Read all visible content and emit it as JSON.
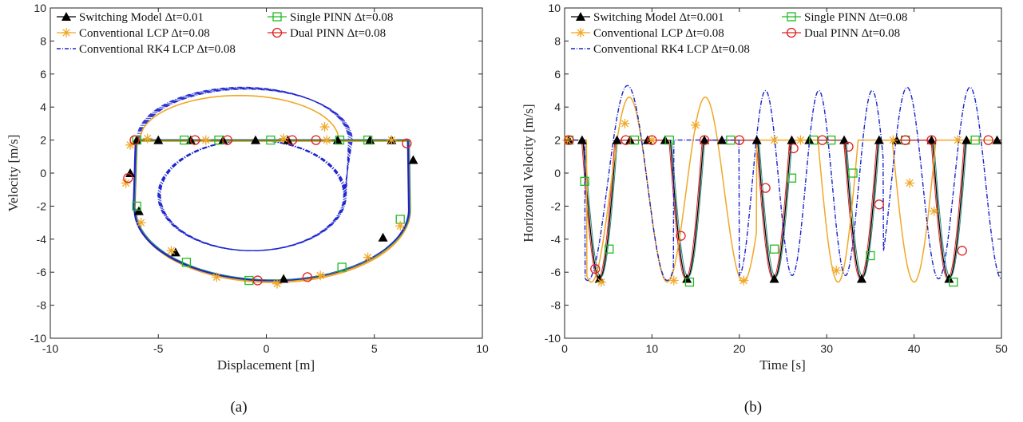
{
  "colors": {
    "switching": "#000000",
    "single": "#22bb22",
    "lcp": "#f0a826",
    "dual": "#e02020",
    "rk4": "#1a22cc",
    "teal": "#2a8a7a"
  },
  "chart_data": [
    {
      "id": "a",
      "type": "line",
      "caption": "(a)",
      "xlabel": "Displacement [m]",
      "ylabel": "Velocity [m/s]",
      "xlim": [
        -10,
        10
      ],
      "ylim": [
        -10,
        10
      ],
      "xticks": [
        "-10",
        "-5",
        "0",
        "5",
        "10"
      ],
      "yticks": [
        "-10",
        "-8",
        "-6",
        "-4",
        "-2",
        "0",
        "2",
        "4",
        "6",
        "8",
        "10"
      ],
      "grid": false,
      "legend": [
        {
          "key": "switching",
          "label": "Switching Model Δt=0.01"
        },
        {
          "key": "single",
          "label": "Single PINN Δt=0.08"
        },
        {
          "key": "lcp",
          "label": "Conventional LCP Δt=0.08"
        },
        {
          "key": "dual",
          "label": "Dual PINN Δt=0.08"
        },
        {
          "key": "rk4",
          "label": "Conventional RK4 LCP Δt=0.08"
        }
      ],
      "legend_position": "top-left",
      "series": [
        {
          "name": "Switching Model Δt=0.01",
          "key": "switching",
          "markers": [
            [
              -6.0,
              2.0
            ],
            [
              -5.0,
              2.0
            ],
            [
              -3.5,
              2.0
            ],
            [
              -2.0,
              2.0
            ],
            [
              -0.5,
              2.0
            ],
            [
              1.0,
              2.0
            ],
            [
              3.3,
              2.0
            ],
            [
              4.8,
              2.0
            ],
            [
              5.8,
              2.0
            ],
            [
              6.8,
              0.8
            ],
            [
              5.4,
              -3.9
            ],
            [
              0.8,
              -6.4
            ],
            [
              -4.2,
              -4.8
            ],
            [
              -5.9,
              -2.3
            ],
            [
              -6.3,
              0.0
            ]
          ]
        },
        {
          "name": "Single PINN Δt=0.08",
          "key": "single",
          "markers": [
            [
              -6.0,
              2.0
            ],
            [
              -3.8,
              2.0
            ],
            [
              -2.2,
              2.0
            ],
            [
              0.2,
              2.0
            ],
            [
              3.4,
              2.0
            ],
            [
              4.7,
              2.0
            ],
            [
              6.2,
              -2.8
            ],
            [
              3.5,
              -5.7
            ],
            [
              -0.8,
              -6.5
            ],
            [
              -3.7,
              -5.4
            ],
            [
              -6.0,
              -2.0
            ]
          ]
        },
        {
          "name": "Conventional LCP Δt=0.08",
          "key": "lcp",
          "markers": [
            [
              -6.3,
              1.7
            ],
            [
              -5.5,
              2.1
            ],
            [
              -2.8,
              2.0
            ],
            [
              0.8,
              2.1
            ],
            [
              2.8,
              2.0
            ],
            [
              5.8,
              2.0
            ],
            [
              6.2,
              -3.2
            ],
            [
              4.7,
              -5.1
            ],
            [
              2.5,
              -6.2
            ],
            [
              0.5,
              -6.7
            ],
            [
              -2.3,
              -6.3
            ],
            [
              -4.4,
              -4.7
            ],
            [
              -5.8,
              -3.0
            ],
            [
              -6.5,
              -0.6
            ],
            [
              2.7,
              2.8
            ]
          ]
        },
        {
          "name": "Dual PINN Δt=0.08",
          "key": "dual",
          "markers": [
            [
              -6.1,
              2.0
            ],
            [
              -3.3,
              2.0
            ],
            [
              -1.8,
              2.0
            ],
            [
              1.2,
              2.0
            ],
            [
              2.3,
              2.0
            ],
            [
              6.5,
              1.8
            ],
            [
              1.9,
              -6.3
            ],
            [
              -0.4,
              -6.5
            ],
            [
              -6.4,
              -0.3
            ]
          ]
        },
        {
          "name": "Conventional RK4 LCP Δt=0.08",
          "key": "rk4",
          "markers": []
        }
      ]
    },
    {
      "id": "b",
      "type": "line",
      "caption": "(b)",
      "xlabel": "Time [s]",
      "ylabel": "Horizontal Velocity [m/s]",
      "xlim": [
        0,
        50
      ],
      "ylim": [
        -10,
        10
      ],
      "xticks": [
        "0",
        "10",
        "20",
        "30",
        "40",
        "50"
      ],
      "yticks": [
        "-10",
        "-8",
        "-6",
        "-4",
        "-2",
        "0",
        "2",
        "4",
        "6",
        "8",
        "10"
      ],
      "grid": false,
      "legend": [
        {
          "key": "switching",
          "label": "Switching Model Δt=0.001"
        },
        {
          "key": "single",
          "label": "Single PINN Δt=0.08"
        },
        {
          "key": "lcp",
          "label": "Conventional LCP Δt=0.08"
        },
        {
          "key": "dual",
          "label": "Dual PINN Δt=0.08"
        },
        {
          "key": "rk4",
          "label": "Conventional RK4 LCP Δt=0.08"
        }
      ],
      "legend_position": "top-left",
      "series": [
        {
          "name": "Switching Model Δt=0.001",
          "key": "switching",
          "markers": [
            [
              0.5,
              2.0
            ],
            [
              2.0,
              2.0
            ],
            [
              4.0,
              -6.4
            ],
            [
              6.0,
              2.0
            ],
            [
              7.5,
              2.0
            ],
            [
              9.5,
              2.0
            ],
            [
              11.5,
              2.0
            ],
            [
              14.0,
              -6.4
            ],
            [
              16.0,
              2.0
            ],
            [
              18.0,
              2.0
            ],
            [
              22.0,
              2.0
            ],
            [
              24.0,
              -6.4
            ],
            [
              26.0,
              2.0
            ],
            [
              28.0,
              2.0
            ],
            [
              32.0,
              2.0
            ],
            [
              34.0,
              -6.4
            ],
            [
              36.0,
              2.0
            ],
            [
              38.0,
              2.0
            ],
            [
              42.0,
              2.0
            ],
            [
              44.0,
              -6.4
            ],
            [
              46.0,
              2.0
            ],
            [
              49.5,
              2.0
            ]
          ]
        },
        {
          "name": "Single PINN Δt=0.08",
          "key": "single",
          "markers": [
            [
              0.5,
              2.0
            ],
            [
              2.3,
              -0.5
            ],
            [
              5.1,
              -4.6
            ],
            [
              8.0,
              2.0
            ],
            [
              12.0,
              2.0
            ],
            [
              14.3,
              -6.6
            ],
            [
              19.0,
              2.0
            ],
            [
              24.0,
              -4.6
            ],
            [
              26.0,
              -0.3
            ],
            [
              28.5,
              2.0
            ],
            [
              30.5,
              2.0
            ],
            [
              33.0,
              0.0
            ],
            [
              35.0,
              -5.0
            ],
            [
              39.0,
              2.0
            ],
            [
              44.5,
              -6.6
            ],
            [
              47.0,
              2.0
            ]
          ]
        },
        {
          "name": "Conventional LCP Δt=0.08",
          "key": "lcp",
          "markers": [
            [
              0.3,
              2.0
            ],
            [
              4.2,
              -6.6
            ],
            [
              6.9,
              3.0
            ],
            [
              10.0,
              2.0
            ],
            [
              12.5,
              -6.5
            ],
            [
              15.0,
              2.9
            ],
            [
              20.5,
              -6.5
            ],
            [
              24.0,
              2.0
            ],
            [
              27.0,
              2.0
            ],
            [
              31.1,
              -5.9
            ],
            [
              37.6,
              2.0
            ],
            [
              39.5,
              -0.6
            ],
            [
              42.3,
              -2.3
            ],
            [
              45.0,
              2.0
            ]
          ]
        },
        {
          "name": "Dual PINN Δt=0.08",
          "key": "dual",
          "markers": [
            [
              0.5,
              2.0
            ],
            [
              3.5,
              -5.8
            ],
            [
              7.0,
              2.0
            ],
            [
              10.0,
              2.0
            ],
            [
              13.3,
              -3.8
            ],
            [
              16.0,
              2.0
            ],
            [
              20.0,
              2.0
            ],
            [
              23.0,
              -0.9
            ],
            [
              26.2,
              1.5
            ],
            [
              29.5,
              2.0
            ],
            [
              32.5,
              1.6
            ],
            [
              36.0,
              -1.9
            ],
            [
              39.0,
              2.0
            ],
            [
              42.0,
              2.0
            ],
            [
              45.5,
              -4.7
            ],
            [
              48.5,
              2.0
            ]
          ]
        },
        {
          "name": "Conventional RK4 LCP Δt=0.08",
          "key": "rk4",
          "markers": []
        }
      ]
    }
  ]
}
